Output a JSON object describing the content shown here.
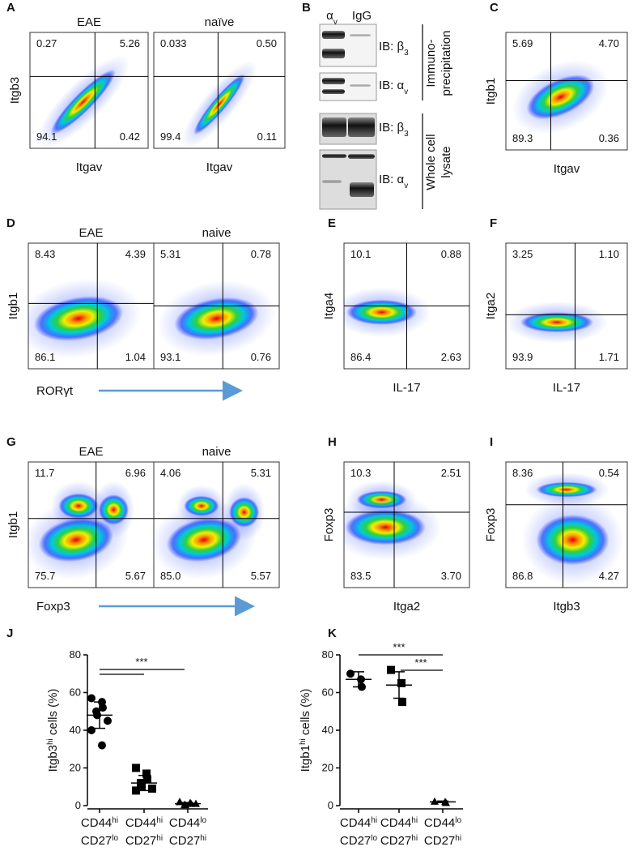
{
  "panels": [
    {
      "letter": "A",
      "plots": [
        {
          "title": "EAE",
          "ylabel": "Itgb3",
          "xlabel": "Itgav",
          "quadrants": [
            "0.27",
            "5.26",
            "94.1",
            "0.42"
          ]
        },
        {
          "title": "naïve",
          "xlabel": "Itgav",
          "quadrants": [
            "0.033",
            "0.50",
            "99.4",
            "0.11"
          ]
        }
      ]
    },
    {
      "letter": "B",
      "blot": {
        "columns": [
          {
            "text": "α",
            "sub": "v"
          },
          {
            "text": "IgG"
          }
        ],
        "rows": [
          {
            "text": "IB: β",
            "sub": "3"
          },
          {
            "text": "IB: α",
            "sub": "v"
          },
          {
            "text": "IB: β",
            "sub": "3"
          },
          {
            "text": "IB: α",
            "sub": "v"
          }
        ],
        "groups": [
          [
            "Immuno-",
            "precipitation"
          ],
          [
            "Whole cell",
            "lysate"
          ]
        ]
      }
    },
    {
      "letter": "C",
      "plots": [
        {
          "ylabel": "Itgb1",
          "xlabel": "Itgav",
          "quadrants": [
            "5.69",
            "4.70",
            "89.3",
            "0.36"
          ]
        }
      ]
    },
    {
      "letter": "D",
      "xlabel": "RORγt",
      "plots": [
        {
          "title": "EAE",
          "ylabel": "Itgb1",
          "quadrants": [
            "8.43",
            "4.39",
            "86.1",
            "1.04"
          ]
        },
        {
          "title": "naive",
          "quadrants": [
            "5.31",
            "0.78",
            "93.1",
            "0.76"
          ]
        }
      ]
    },
    {
      "letter": "E",
      "plots": [
        {
          "ylabel": "Itga4",
          "xlabel": "IL-17",
          "quadrants": [
            "10.1",
            "0.88",
            "86.4",
            "2.63"
          ]
        }
      ]
    },
    {
      "letter": "F",
      "plots": [
        {
          "ylabel": "Itga2",
          "xlabel": "IL-17",
          "quadrants": [
            "3.25",
            "1.10",
            "93.9",
            "1.71"
          ]
        }
      ]
    },
    {
      "letter": "G",
      "xlabel": "Foxp3",
      "plots": [
        {
          "title": "EAE",
          "ylabel": "Itgb1",
          "quadrants": [
            "11.7",
            "6.96",
            "75.7",
            "5.67"
          ]
        },
        {
          "title": "naive",
          "quadrants": [
            "4.06",
            "5.31",
            "85.0",
            "5.57"
          ]
        }
      ]
    },
    {
      "letter": "H",
      "plots": [
        {
          "ylabel": "Foxp3",
          "xlabel": "Itga2",
          "quadrants": [
            "10.3",
            "2.51",
            "83.5",
            "3.70"
          ]
        }
      ]
    },
    {
      "letter": "I",
      "plots": [
        {
          "ylabel": "Foxp3",
          "xlabel": "Itgb3",
          "quadrants": [
            "8.36",
            "0.54",
            "86.8",
            "4.27"
          ]
        }
      ]
    }
  ],
  "chart_data": [
    {
      "type": "dot",
      "panel_label": "J",
      "ylabel": {
        "text": "Itgb3",
        "sup": "hi",
        "rest": " cells (%)"
      },
      "ylim": [
        0,
        80
      ],
      "yticks": [
        0,
        20,
        40,
        60,
        80
      ],
      "categories": [
        {
          "top": "CD44",
          "top_sup": "hi",
          "bottom": "CD27",
          "bottom_sup": "lo"
        },
        {
          "top": "CD44",
          "top_sup": "hi",
          "bottom": "CD27",
          "bottom_sup": "hi"
        },
        {
          "top": "CD44",
          "top_sup": "lo",
          "bottom": "CD27",
          "bottom_sup": "hi"
        }
      ],
      "groups": [
        {
          "marker": "circle",
          "values": [
            57,
            55,
            52,
            50,
            48,
            45,
            40,
            32
          ],
          "mean": 48,
          "error": 7
        },
        {
          "marker": "square",
          "values": [
            20,
            17,
            14,
            12,
            10,
            9,
            8
          ],
          "mean": 12,
          "error": 4
        },
        {
          "marker": "triangle",
          "values": [
            2,
            1.5,
            1,
            0.5,
            0.3,
            1,
            2
          ],
          "mean": 1,
          "error": 0.6
        }
      ],
      "annotations": [
        "***"
      ]
    },
    {
      "type": "dot",
      "panel_label": "K",
      "ylabel": {
        "text": "Itgb1",
        "sup": "hi",
        "rest": " cells (%)"
      },
      "ylim": [
        0,
        80
      ],
      "yticks": [
        0,
        20,
        40,
        60,
        80
      ],
      "categories": [
        {
          "top": "CD44",
          "top_sup": "hi",
          "bottom": "CD27",
          "bottom_sup": "lo"
        },
        {
          "top": "CD44",
          "top_sup": "hi",
          "bottom": "CD27",
          "bottom_sup": "hi"
        },
        {
          "top": "CD44",
          "top_sup": "lo",
          "bottom": "CD27",
          "bottom_sup": "hi"
        }
      ],
      "groups": [
        {
          "marker": "circle",
          "values": [
            70,
            67,
            63
          ],
          "mean": 67,
          "error": 4
        },
        {
          "marker": "square",
          "values": [
            72,
            65,
            55
          ],
          "mean": 64,
          "error": 7
        },
        {
          "marker": "triangle",
          "values": [
            2.2,
            2,
            1.5
          ],
          "mean": 2,
          "error": 0.4
        }
      ],
      "annotations": [
        "***",
        "***"
      ]
    }
  ]
}
